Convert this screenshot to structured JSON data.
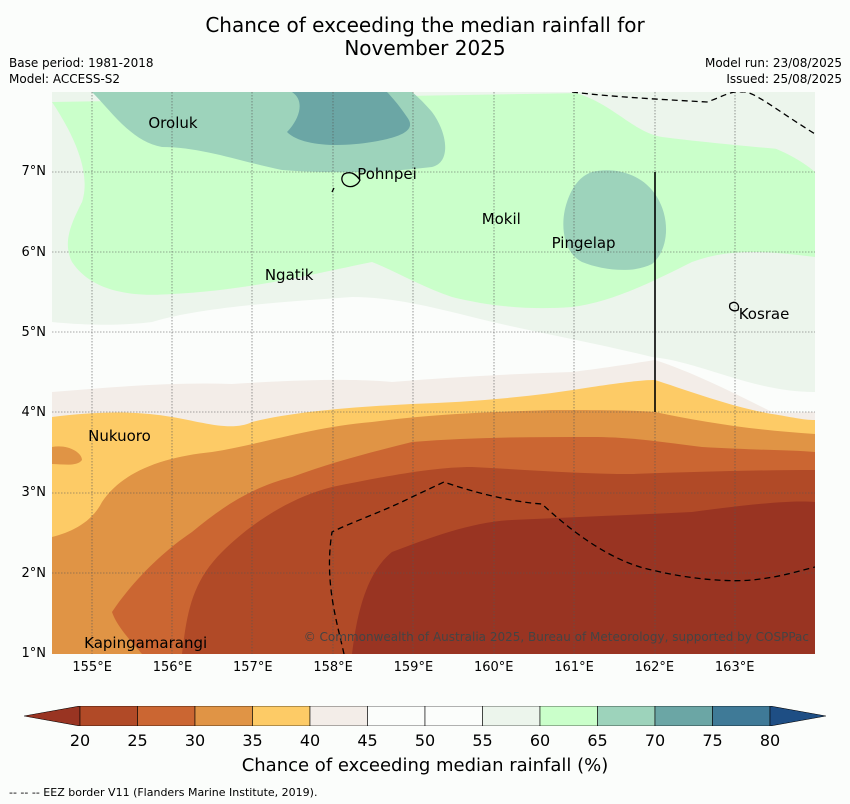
{
  "title_line1": "Chance of exceeding the median rainfall for",
  "title_line2": "November 2025",
  "meta": {
    "base_period": "Base period: 1981-2018",
    "model": "Model: ACCESS-S2",
    "model_run": "Model run: 23/08/2025",
    "issued": "Issued: 25/08/2025"
  },
  "places": [
    {
      "name": "Oroluk",
      "lon": 155.7,
      "lat": 7.62
    },
    {
      "name": "Pohnpei",
      "lon": 158.3,
      "lat": 6.98
    },
    {
      "name": "Mokil",
      "lon": 159.85,
      "lat": 6.42
    },
    {
      "name": "Pingelap",
      "lon": 160.72,
      "lat": 6.12
    },
    {
      "name": "Ngatik",
      "lon": 157.15,
      "lat": 5.72
    },
    {
      "name": "Kosrae",
      "lon": 163.05,
      "lat": 5.24
    },
    {
      "name": "Nukuoro",
      "lon": 154.95,
      "lat": 3.72
    },
    {
      "name": "Kapingamarangi",
      "lon": 154.9,
      "lat": 1.14
    }
  ],
  "copyright": "© Commonwealth of Australia 2025, Bureau of Meteorology, supported by COSPPac",
  "axes": {
    "lat_ticks": [
      "7°N",
      "6°N",
      "5°N",
      "4°N",
      "3°N",
      "2°N",
      "1°N"
    ],
    "lat_values": [
      7,
      6,
      5,
      4,
      3,
      2,
      1
    ],
    "lon_ticks": [
      "155°E",
      "156°E",
      "157°E",
      "158°E",
      "159°E",
      "160°E",
      "161°E",
      "162°E",
      "163°E"
    ],
    "lon_values": [
      155,
      156,
      157,
      158,
      159,
      160,
      161,
      162,
      163
    ],
    "lon_range": [
      154.5,
      164.0
    ],
    "lat_range": [
      1.0,
      8.0
    ]
  },
  "colorbar": {
    "title": "Chance of exceeding median rainfall (%)",
    "labels": [
      "20",
      "25",
      "30",
      "35",
      "40",
      "45",
      "50",
      "55",
      "60",
      "65",
      "70",
      "75",
      "80"
    ],
    "colors": [
      "#b14a27",
      "#cb6632",
      "#e09445",
      "#fdcb66",
      "#f3ede8",
      "#fbfdfb",
      "#fbfdfb",
      "#ecf5ec",
      "#caffca",
      "#9dd3bb",
      "#6ba6a5",
      "#3f7a97"
    ],
    "under_color": "#993422",
    "over_color": "#1e4e84"
  },
  "footnote": "--  --  -- EEZ border V11 (Flanders Marine Institute, 2019)."
}
